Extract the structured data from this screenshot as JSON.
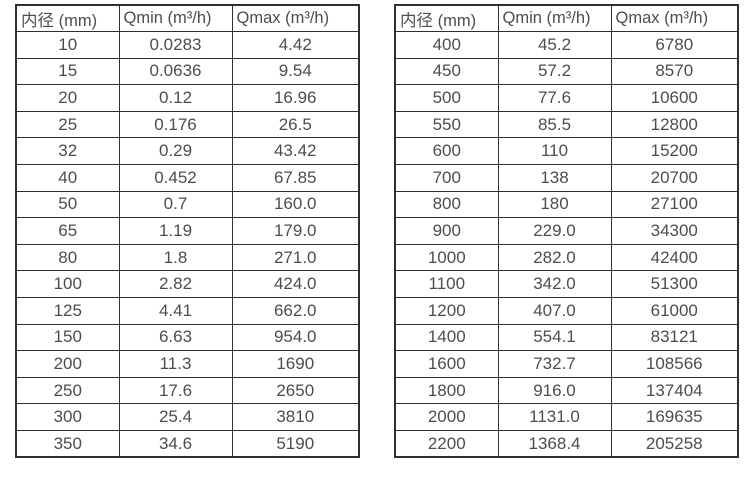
{
  "colors": {
    "border": "#2f2f2f",
    "text": "#4d4d4d",
    "background": "#ffffff"
  },
  "tables": [
    {
      "name": "flow-range-small-diameters",
      "headers": [
        "内径 (mm)",
        "Qmin (m³/h)",
        "Qmax (m³/h)"
      ],
      "rows": [
        [
          "10",
          "0.0283",
          "4.42"
        ],
        [
          "15",
          "0.0636",
          "9.54"
        ],
        [
          "20",
          "0.12",
          "16.96"
        ],
        [
          "25",
          "0.176",
          "26.5"
        ],
        [
          "32",
          "0.29",
          "43.42"
        ],
        [
          "40",
          "0.452",
          "67.85"
        ],
        [
          "50",
          "0.7",
          "160.0"
        ],
        [
          "65",
          "1.19",
          "179.0"
        ],
        [
          "80",
          "1.8",
          "271.0"
        ],
        [
          "100",
          "2.82",
          "424.0"
        ],
        [
          "125",
          "4.41",
          "662.0"
        ],
        [
          "150",
          "6.63",
          "954.0"
        ],
        [
          "200",
          "11.3",
          "1690"
        ],
        [
          "250",
          "17.6",
          "2650"
        ],
        [
          "300",
          "25.4",
          "3810"
        ],
        [
          "350",
          "34.6",
          "5190"
        ]
      ]
    },
    {
      "name": "flow-range-large-diameters",
      "headers": [
        "内径 (mm)",
        "Qmin (m³/h)",
        "Qmax (m³/h)"
      ],
      "rows": [
        [
          "400",
          "45.2",
          "6780"
        ],
        [
          "450",
          "57.2",
          "8570"
        ],
        [
          "500",
          "77.6",
          "10600"
        ],
        [
          "550",
          "85.5",
          "12800"
        ],
        [
          "600",
          "110",
          "15200"
        ],
        [
          "700",
          "138",
          "20700"
        ],
        [
          "800",
          "180",
          "27100"
        ],
        [
          "900",
          "229.0",
          "34300"
        ],
        [
          "1000",
          "282.0",
          "42400"
        ],
        [
          "1100",
          "342.0",
          "51300"
        ],
        [
          "1200",
          "407.0",
          "61000"
        ],
        [
          "1400",
          "554.1",
          "83121"
        ],
        [
          "1600",
          "732.7",
          "108566"
        ],
        [
          "1800",
          "916.0",
          "137404"
        ],
        [
          "2000",
          "1131.0",
          "169635"
        ],
        [
          "2200",
          "1368.4",
          "205258"
        ]
      ]
    }
  ]
}
